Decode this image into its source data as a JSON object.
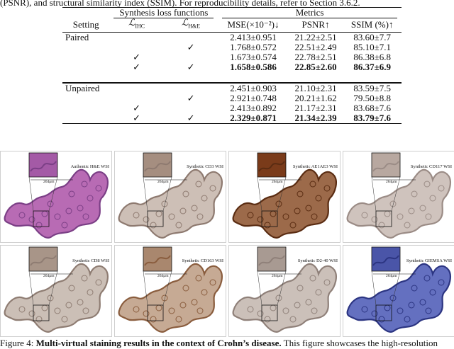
{
  "top_caption": "(PSNR), and structural similarity index (SSIM). For reproducibility details, refer to Section 3.6.2.",
  "table": {
    "group_headers": {
      "loss": "Synthesis loss functions",
      "metrics": "Metrics"
    },
    "columns": {
      "setting": "Setting",
      "l_ihc_main": "ℒ",
      "l_ihc_sub": "IHC",
      "l_he_main": "ℒ",
      "l_he_sub": "H&E",
      "mse": "MSE(×10⁻²)↓",
      "psnr": "PSNR↑",
      "ssim": "SSIM (%)↑"
    },
    "paired": {
      "label": "Paired",
      "rows": [
        {
          "ihc": "",
          "he": "",
          "mse": "2.413±0.951",
          "psnr": "21.22±2.51",
          "ssim": "83.60±7.7"
        },
        {
          "ihc": "",
          "he": "✓",
          "mse": "1.768±0.572",
          "psnr": "22.51±2.49",
          "ssim": "85.10±7.1"
        },
        {
          "ihc": "✓",
          "he": "",
          "mse": "1.673±0.574",
          "psnr": "22.78±2.51",
          "ssim": "86.38±6.8"
        },
        {
          "ihc": "✓",
          "he": "✓",
          "mse": "1.658±0.586",
          "psnr": "22.85±2.60",
          "ssim": "86.37±6.9"
        }
      ]
    },
    "unpaired": {
      "label": "Unpaired",
      "rows": [
        {
          "ihc": "",
          "he": "",
          "mse": "2.451±0.903",
          "psnr": "21.10±2.31",
          "ssim": "83.59±7.5"
        },
        {
          "ihc": "",
          "he": "✓",
          "mse": "2.921±0.748",
          "psnr": "20.21±1.62",
          "ssim": "79.50±8.8"
        },
        {
          "ihc": "✓",
          "he": "",
          "mse": "2.413±0.892",
          "psnr": "21.17±2.31",
          "ssim": "83.68±7.6"
        },
        {
          "ihc": "✓",
          "he": "✓",
          "mse": "2.329±0.871",
          "psnr": "21.34±2.39",
          "ssim": "83.79±7.6"
        }
      ]
    }
  },
  "figure": {
    "scale_label": "264μm",
    "panels": [
      {
        "label": "Authentic H&E WSI",
        "fill": "#b86bb4",
        "edge": "#7b3f86",
        "inset": "#a45aa6"
      },
      {
        "label": "Synthetic CD3 WSI",
        "fill": "#cdbfb6",
        "edge": "#8e7a70",
        "inset": "#a58e80"
      },
      {
        "label": "Synthetic AE1AE3 WSI",
        "fill": "#9c6a4a",
        "edge": "#5a2c12",
        "inset": "#7a3b1a"
      },
      {
        "label": "Synthetic CD117 WSI",
        "fill": "#cfc3bd",
        "edge": "#9b8c86",
        "inset": "#b8a8a0"
      },
      {
        "label": "Synthetic CD8 WSI",
        "fill": "#cbbfb6",
        "edge": "#8e7c72",
        "inset": "#a89588"
      },
      {
        "label": "Synthetic CD163 WSI",
        "fill": "#c6aa94",
        "edge": "#8a5d3e",
        "inset": "#a9876e"
      },
      {
        "label": "Synthetic D2-40 WSI",
        "fill": "#cbc0b9",
        "edge": "#8f8079",
        "inset": "#a89a92"
      },
      {
        "label": "Synthetic GIEMSA WSI",
        "fill": "#6470c0",
        "edge": "#2c3582",
        "inset": "#4a55a8"
      }
    ]
  },
  "figure_caption": {
    "prefix": "Figure 4: ",
    "bold": "Multi-virtual staining results in the context of Crohn’s disease.",
    "rest": " This figure showcases the high-resolution"
  }
}
